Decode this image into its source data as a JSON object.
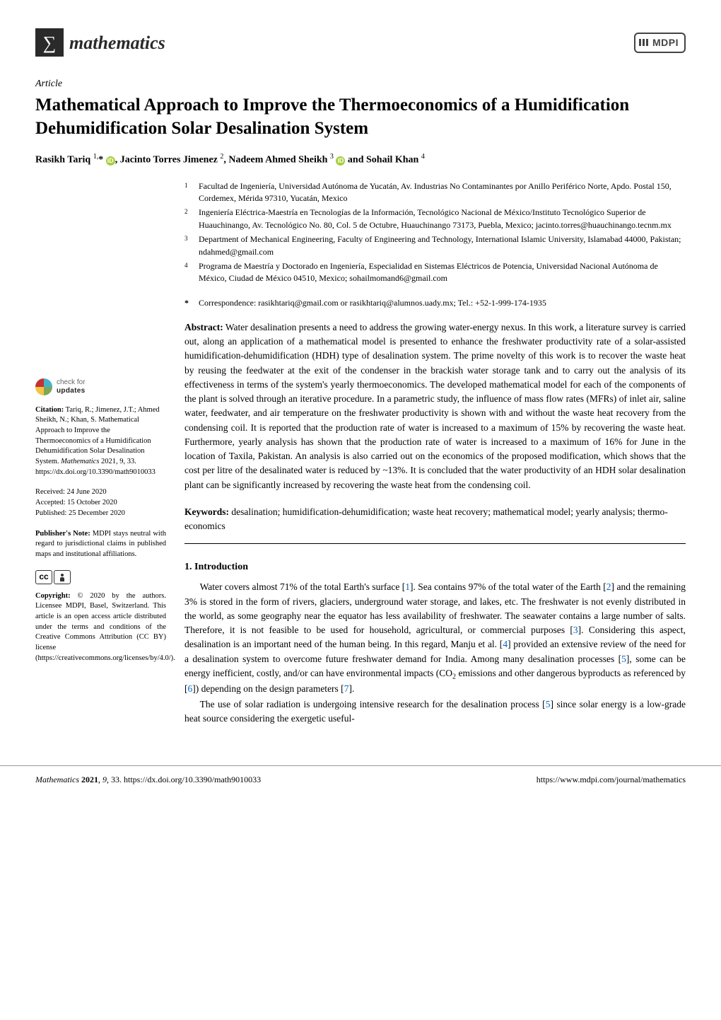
{
  "journal": {
    "icon_glyph": "∑",
    "name": "mathematics"
  },
  "publisher": "MDPI",
  "article_type": "Article",
  "title": "Mathematical Approach to Improve the Thermoeconomics of a Humidification Dehumidification Solar Desalination System",
  "authors_html": "Rasikh Tariq <sup>1,</sup>* <span class='orcid'>iD</span>, Jacinto Torres Jimenez <sup>2</sup>, Nadeem Ahmed Sheikh <sup>3</sup> <span class='orcid'>iD</span> and Sohail Khan <sup>4</sup>",
  "affiliations": [
    {
      "num": "1",
      "text": "Facultad de Ingeniería, Universidad Autónoma de Yucatán, Av. Industrias No Contaminantes por Anillo Periférico Norte, Apdo. Postal 150, Cordemex, Mérida 97310, Yucatán, Mexico"
    },
    {
      "num": "2",
      "text": "Ingeniería Eléctrica-Maestría en Tecnologías de la Información, Tecnológico Nacional de México/Instituto Tecnológico Superior de Huauchinango, Av. Tecnológico No. 80, Col. 5 de Octubre, Huauchinango 73173, Puebla, Mexico; jacinto.torres@huauchinango.tecnm.mx"
    },
    {
      "num": "3",
      "text": "Department of Mechanical Engineering, Faculty of Engineering and Technology, International Islamic University, Islamabad 44000, Pakistan; ndahmed@gmail.com"
    },
    {
      "num": "4",
      "text": "Programa de Maestría y Doctorado en Ingeniería, Especialidad en Sistemas Eléctricos de Potencia, Universidad Nacional Autónoma de México, Ciudad de México 04510, Mexico; sohailmomand6@gmail.com"
    }
  ],
  "correspondence": "Correspondence: rasikhtariq@gmail.com or rasikhtariq@alumnos.uady.mx; Tel.: +52-1-999-174-1935",
  "abstract_label": "Abstract:",
  "abstract_text": " Water desalination presents a need to address the growing water-energy nexus. In this work, a literature survey is carried out, along an application of a mathematical model is presented to enhance the freshwater productivity rate of a solar-assisted humidification-dehumidification (HDH) type of desalination system. The prime novelty of this work is to recover the waste heat by reusing the feedwater at the exit of the condenser in the brackish water storage tank and to carry out the analysis of its effectiveness in terms of the system's yearly thermoeconomics. The developed mathematical model for each of the components of the plant is solved through an iterative procedure. In a parametric study, the influence of mass flow rates (MFRs) of inlet air, saline water, feedwater, and air temperature on the freshwater productivity is shown with and without the waste heat recovery from the condensing coil. It is reported that the production rate of water is increased to a maximum of 15% by recovering the waste heat. Furthermore, yearly analysis has shown that the production rate of water is increased to a maximum of 16% for June in the location of Taxila, Pakistan. An analysis is also carried out on the economics of the proposed modification, which shows that the cost per litre of the desalinated water is reduced by ~13%. It is concluded that the water productivity of an HDH solar desalination plant can be significantly increased by recovering the waste heat from the condensing coil.",
  "keywords_label": "Keywords:",
  "keywords_text": " desalination; humidification-dehumidification; waste heat recovery; mathematical model; yearly analysis; thermo-economics",
  "section_1_heading": "1. Introduction",
  "intro_p1_html": "Water covers almost 71% of the total Earth's surface [<span class='ref'>1</span>]. Sea contains 97% of the total water of the Earth [<span class='ref'>2</span>] and the remaining 3% is stored in the form of rivers, glaciers, underground water storage, and lakes, etc. The freshwater is not evenly distributed in the world, as some geography near the equator has less availability of freshwater. The seawater contains a large number of salts. Therefore, it is not feasible to be used for household, agricultural, or commercial purposes [<span class='ref'>3</span>]. Considering this aspect, desalination is an important need of the human being. In this regard, Manju et al. [<span class='ref'>4</span>] provided an extensive review of the need for a desalination system to overcome future freshwater demand for India. Among many desalination processes [<span class='ref'>5</span>], some can be energy inefficient, costly, and/or can have environmental impacts (CO<sub>2</sub> emissions and other dangerous byproducts as referenced by [<span class='ref'>6</span>]) depending on the design parameters [<span class='ref'>7</span>].",
  "intro_p2_html": "The use of solar radiation is undergoing intensive research for the desalination process [<span class='ref'>5</span>] since solar energy is a low-grade heat source considering the exergetic useful-",
  "sidebar": {
    "check_line1": "check for",
    "check_line2": "updates",
    "citation_label": "Citation:",
    "citation_text": " Tariq, R.; Jimenez, J.T.; Ahmed Sheikh, N.; Khan, S. Mathematical Approach to Improve the Thermoeconomics of a Humidification Dehumidification Solar Desalination System. ",
    "citation_journal": "Mathematics",
    "citation_issue": " 2021, 9, 33. https://dx.doi.org/10.3390/math9010033",
    "received": "Received: 24 June 2020",
    "accepted": "Accepted: 15 October 2020",
    "published": "Published: 25 December 2020",
    "note_label": "Publisher's Note:",
    "note_text": " MDPI stays neutral with regard to jurisdictional claims in published maps and institutional affiliations.",
    "copyright_label": "Copyright:",
    "copyright_text": " © 2020 by the authors. Licensee MDPI, Basel, Switzerland. This article is an open access article distributed under the terms and conditions of the Creative Commons Attribution (CC BY) license (https://creativecommons.org/licenses/by/4.0/)."
  },
  "footer": {
    "left_html": "<i>Mathematics</i> <b>2021</b>, <i>9</i>, 33. https://dx.doi.org/10.3390/math9010033",
    "right": "https://www.mdpi.com/journal/mathematics"
  },
  "colors": {
    "orcid_green": "#a6ce39",
    "ref_blue": "#0066cc",
    "journal_icon_bg": "#2a2a2a",
    "background": "#ffffff"
  }
}
